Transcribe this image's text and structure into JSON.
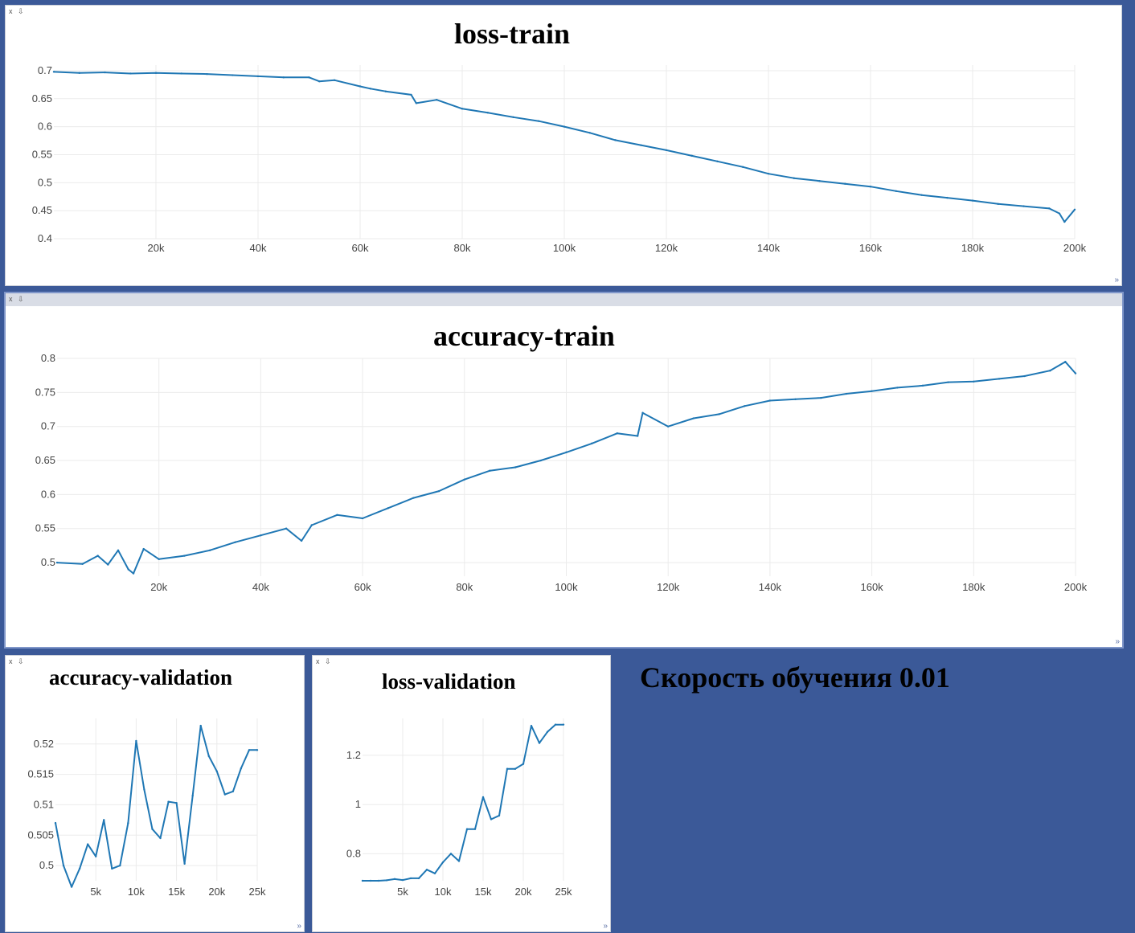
{
  "panel_controls": {
    "close": "x",
    "pin": "⇩"
  },
  "resize_glyph": "»",
  "caption": "Скорость обучения 0.01",
  "line_color": "#1f77b4",
  "chart_data": [
    {
      "type": "line",
      "title": "loss-train",
      "xlabel": "",
      "ylabel": "",
      "xlim": [
        0,
        200000
      ],
      "ylim": [
        0.4,
        0.71
      ],
      "xticks": [
        20000,
        40000,
        60000,
        80000,
        100000,
        120000,
        140000,
        160000,
        180000,
        200000
      ],
      "xtick_labels": [
        "20k",
        "40k",
        "60k",
        "80k",
        "100k",
        "120k",
        "140k",
        "160k",
        "180k",
        "200k"
      ],
      "yticks": [
        0.4,
        0.45,
        0.5,
        0.55,
        0.6,
        0.65,
        0.7
      ],
      "ytick_labels": [
        "0.4",
        "0.45",
        "0.5",
        "0.55",
        "0.6",
        "0.65",
        "0.7"
      ],
      "grid": true,
      "series": [
        {
          "x": [
            0,
            5000,
            10000,
            15000,
            20000,
            25000,
            30000,
            35000,
            40000,
            45000,
            50000,
            52000,
            55000,
            60000,
            62000,
            65000,
            70000,
            71000,
            75000,
            80000,
            85000,
            90000,
            95000,
            100000,
            105000,
            110000,
            115000,
            120000,
            125000,
            130000,
            135000,
            140000,
            145000,
            150000,
            155000,
            160000,
            165000,
            170000,
            175000,
            180000,
            185000,
            190000,
            195000,
            197000,
            198000,
            200000
          ],
          "y": [
            0.698,
            0.696,
            0.697,
            0.695,
            0.696,
            0.695,
            0.694,
            0.692,
            0.69,
            0.688,
            0.688,
            0.681,
            0.683,
            0.672,
            0.668,
            0.663,
            0.657,
            0.642,
            0.648,
            0.632,
            0.625,
            0.617,
            0.61,
            0.6,
            0.589,
            0.576,
            0.567,
            0.558,
            0.548,
            0.538,
            0.528,
            0.516,
            0.508,
            0.503,
            0.498,
            0.493,
            0.485,
            0.478,
            0.473,
            0.468,
            0.462,
            0.458,
            0.454,
            0.445,
            0.43,
            0.452
          ]
        }
      ]
    },
    {
      "type": "line",
      "title": "accuracy-train",
      "xlabel": "",
      "ylabel": "",
      "xlim": [
        0,
        200000
      ],
      "ylim": [
        0.48,
        0.8
      ],
      "xticks": [
        20000,
        40000,
        60000,
        80000,
        100000,
        120000,
        140000,
        160000,
        180000,
        200000
      ],
      "xtick_labels": [
        "20k",
        "40k",
        "60k",
        "80k",
        "100k",
        "120k",
        "140k",
        "160k",
        "180k",
        "200k"
      ],
      "yticks": [
        0.5,
        0.55,
        0.6,
        0.65,
        0.7,
        0.75,
        0.8
      ],
      "ytick_labels": [
        "0.5",
        "0.55",
        "0.6",
        "0.65",
        "0.7",
        "0.75",
        "0.8"
      ],
      "grid": true,
      "series": [
        {
          "x": [
            0,
            5000,
            8000,
            10000,
            12000,
            14000,
            15000,
            17000,
            20000,
            25000,
            30000,
            35000,
            40000,
            45000,
            48000,
            50000,
            55000,
            60000,
            65000,
            70000,
            75000,
            80000,
            85000,
            90000,
            95000,
            100000,
            105000,
            110000,
            114000,
            115000,
            120000,
            125000,
            130000,
            135000,
            140000,
            145000,
            150000,
            155000,
            160000,
            165000,
            170000,
            175000,
            180000,
            185000,
            190000,
            195000,
            198000,
            200000
          ],
          "y": [
            0.5,
            0.498,
            0.51,
            0.497,
            0.518,
            0.49,
            0.484,
            0.52,
            0.505,
            0.51,
            0.518,
            0.53,
            0.54,
            0.55,
            0.532,
            0.555,
            0.57,
            0.565,
            0.58,
            0.595,
            0.605,
            0.622,
            0.635,
            0.64,
            0.65,
            0.662,
            0.675,
            0.69,
            0.686,
            0.72,
            0.7,
            0.712,
            0.718,
            0.73,
            0.738,
            0.74,
            0.742,
            0.748,
            0.752,
            0.757,
            0.76,
            0.765,
            0.766,
            0.77,
            0.774,
            0.782,
            0.795,
            0.778
          ]
        }
      ]
    },
    {
      "type": "line",
      "title": "accuracy-validation",
      "xlabel": "",
      "ylabel": "",
      "xlim": [
        0,
        25000
      ],
      "ylim": [
        0.4975,
        0.5242
      ],
      "xticks": [
        5000,
        10000,
        15000,
        20000,
        25000
      ],
      "xtick_labels": [
        "5k",
        "10k",
        "15k",
        "20k",
        "25k"
      ],
      "yticks": [
        0.5,
        0.505,
        0.51,
        0.515,
        0.52
      ],
      "ytick_labels": [
        "0.5",
        "0.505",
        "0.51",
        "0.515",
        "0.52"
      ],
      "grid": true,
      "series": [
        {
          "x": [
            0,
            1000,
            2000,
            3000,
            4000,
            5000,
            6000,
            7000,
            8000,
            9000,
            10000,
            11000,
            12000,
            13000,
            14000,
            15000,
            16000,
            17000,
            18000,
            19000,
            20000,
            21000,
            22000,
            23000,
            24000,
            25000
          ],
          "y": [
            0.507,
            0.5,
            0.4965,
            0.4995,
            0.5035,
            0.5015,
            0.5075,
            0.4995,
            0.5,
            0.507,
            0.5205,
            0.5125,
            0.506,
            0.5045,
            0.5105,
            0.5103,
            0.5003,
            0.5115,
            0.523,
            0.518,
            0.5155,
            0.5117,
            0.5122,
            0.516,
            0.519,
            0.519
          ]
        }
      ]
    },
    {
      "type": "line",
      "title": "loss-validation",
      "xlabel": "",
      "ylabel": "",
      "xlim": [
        0,
        25000
      ],
      "ylim": [
        0.69,
        1.35
      ],
      "xticks": [
        5000,
        10000,
        15000,
        20000,
        25000
      ],
      "xtick_labels": [
        "5k",
        "10k",
        "15k",
        "20k",
        "25k"
      ],
      "yticks": [
        0.8,
        1.0,
        1.2
      ],
      "ytick_labels": [
        "0.8",
        "1",
        "1.2"
      ],
      "grid": true,
      "series": [
        {
          "x": [
            0,
            1000,
            2000,
            3000,
            4000,
            5000,
            6000,
            7000,
            8000,
            9000,
            10000,
            11000,
            12000,
            13000,
            14000,
            15000,
            16000,
            17000,
            18000,
            19000,
            20000,
            21000,
            22000,
            23000,
            24000,
            25000
          ],
          "y": [
            0.69,
            0.69,
            0.69,
            0.692,
            0.697,
            0.693,
            0.7,
            0.7,
            0.735,
            0.72,
            0.765,
            0.8,
            0.77,
            0.9,
            0.9,
            1.03,
            0.94,
            0.955,
            1.145,
            1.145,
            1.165,
            1.32,
            1.25,
            1.295,
            1.325,
            1.325
          ]
        }
      ]
    }
  ]
}
